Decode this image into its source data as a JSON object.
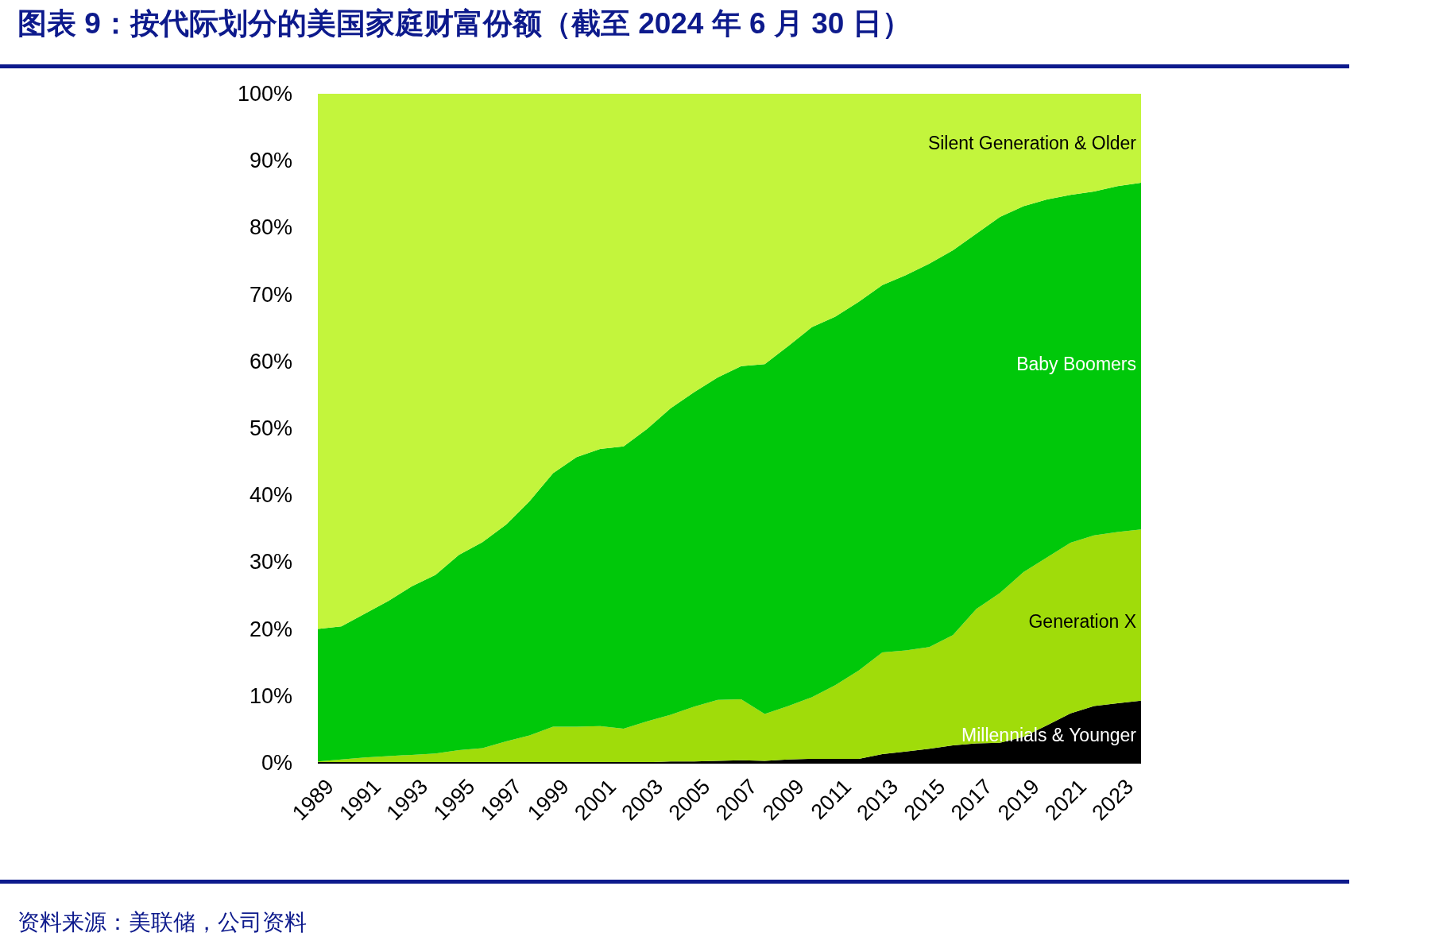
{
  "chart_data": {
    "type": "area",
    "stacked": true,
    "title": "图表 9：按代际划分的美国家庭财富份额（截至 2024 年 6 月 30 日）",
    "annotations": [
      "资料来源：美联储，公司资料"
    ],
    "x": [
      1989,
      1990,
      1991,
      1992,
      1993,
      1994,
      1995,
      1996,
      1997,
      1998,
      1999,
      2000,
      2001,
      2002,
      2003,
      2004,
      2005,
      2006,
      2007,
      2008,
      2009,
      2010,
      2011,
      2012,
      2013,
      2014,
      2015,
      2016,
      2017,
      2018,
      2019,
      2020,
      2021,
      2022,
      2023,
      2024
    ],
    "xlim": [
      1989,
      2024
    ],
    "xticks": [
      1989,
      1991,
      1993,
      1995,
      1997,
      1999,
      2001,
      2003,
      2005,
      2007,
      2009,
      2011,
      2013,
      2015,
      2017,
      2019,
      2021,
      2023
    ],
    "ylim": [
      0,
      100
    ],
    "yticks": [
      {
        "value": 0,
        "label": "0%"
      },
      {
        "value": 10,
        "label": "10%"
      },
      {
        "value": 20,
        "label": "20%"
      },
      {
        "value": 30,
        "label": "30%"
      },
      {
        "value": 40,
        "label": "40%"
      },
      {
        "value": 50,
        "label": "50%"
      },
      {
        "value": 60,
        "label": "60%"
      },
      {
        "value": 70,
        "label": "70%"
      },
      {
        "value": 80,
        "label": "80%"
      },
      {
        "value": 90,
        "label": "90%"
      },
      {
        "value": 100,
        "label": "100%"
      }
    ],
    "grid": false,
    "legend": false,
    "series": [
      {
        "name": "Millennials & Younger",
        "color": "#000000",
        "values": [
          0.1,
          0.1,
          0.1,
          0.1,
          0.1,
          0.1,
          0.1,
          0.1,
          0.1,
          0.1,
          0.1,
          0.1,
          0.1,
          0.1,
          0.1,
          0.2,
          0.2,
          0.3,
          0.4,
          0.3,
          0.5,
          0.6,
          0.6,
          0.6,
          1.3,
          1.7,
          2.1,
          2.6,
          2.9,
          3.0,
          3.9,
          5.6,
          7.4,
          8.5,
          8.9,
          9.3
        ]
      },
      {
        "name": "Generation X",
        "color": "#a0dc0a",
        "values": [
          0.1,
          0.4,
          0.7,
          0.9,
          1.1,
          1.3,
          1.8,
          2.1,
          3.1,
          4.0,
          5.3,
          5.3,
          5.4,
          5.0,
          6.1,
          7.0,
          8.2,
          9.1,
          9.1,
          7.0,
          8.0,
          9.2,
          11.0,
          13.2,
          15.2,
          15.1,
          15.2,
          16.5,
          20.1,
          22.4,
          24.6,
          25.1,
          25.5,
          25.5,
          25.6,
          25.6
        ]
      },
      {
        "name": "Baby Boomers",
        "color": "#00c80a",
        "values": [
          19.8,
          19.9,
          21.5,
          23.2,
          25.2,
          26.7,
          29.2,
          30.8,
          32.4,
          35.0,
          37.9,
          40.3,
          41.4,
          42.2,
          43.7,
          45.8,
          47.0,
          48.2,
          49.8,
          52.3,
          53.8,
          55.3,
          55.1,
          55.1,
          54.9,
          56.1,
          57.3,
          57.5,
          56.1,
          56.2,
          54.7,
          53.5,
          52.0,
          51.4,
          51.7,
          51.8
        ]
      },
      {
        "name": "Silent Generation & Older",
        "color": "#c3f53c",
        "values": [
          80.0,
          79.6,
          77.7,
          75.8,
          73.6,
          71.9,
          68.9,
          67.0,
          64.4,
          60.9,
          56.7,
          54.3,
          53.1,
          52.7,
          50.1,
          47.0,
          44.6,
          42.4,
          40.7,
          40.4,
          37.7,
          34.9,
          33.3,
          31.1,
          28.6,
          27.1,
          25.4,
          23.4,
          20.9,
          18.4,
          16.8,
          15.8,
          15.1,
          14.6,
          13.8,
          13.3
        ]
      }
    ]
  }
}
